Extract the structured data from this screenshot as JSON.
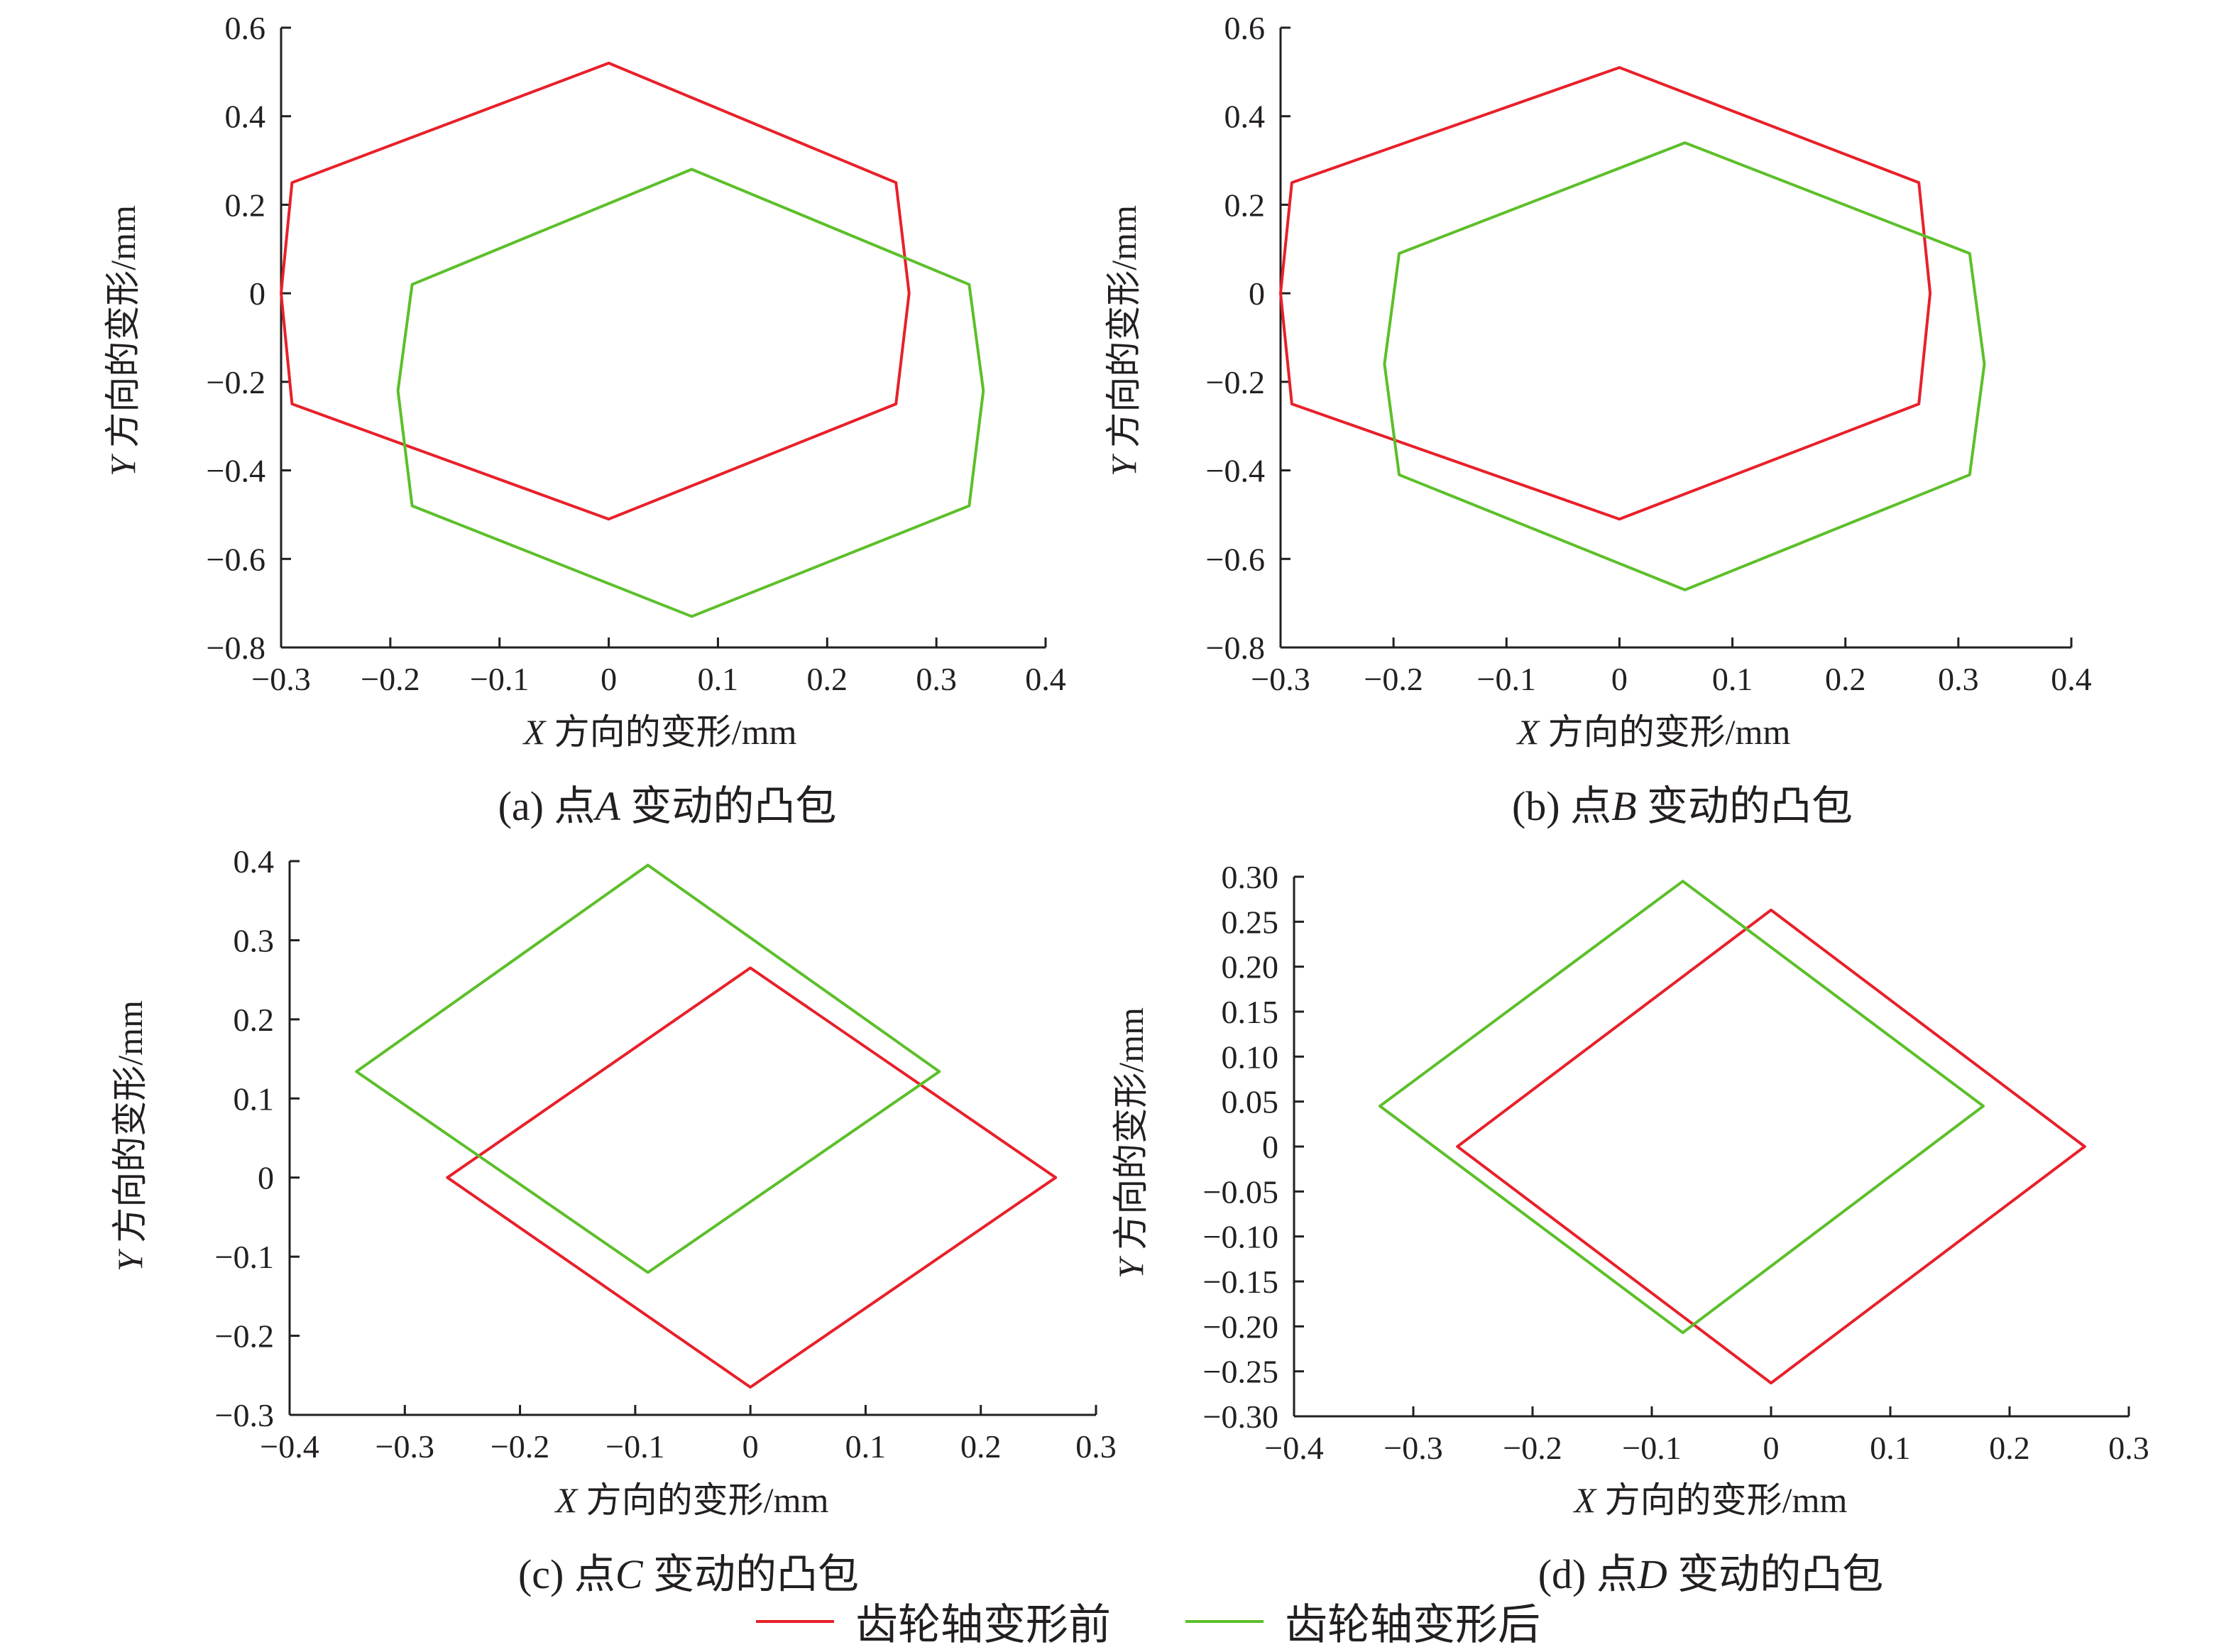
{
  "legend": [
    {
      "label": "齿轮轴变形前",
      "color": "#e8202a"
    },
    {
      "label": "齿轮轴变形后",
      "color": "#5cbf2a"
    }
  ],
  "chart_data": [
    {
      "type": "line",
      "caption": {
        "prefix": "(a) 点",
        "point": "A",
        "suffix": " 变动的凸包"
      },
      "xlabel": {
        "var": "X",
        "text": " 方向的变形/mm"
      },
      "ylabel": {
        "var": "Y",
        "text": " 方向的变形/mm"
      },
      "xlim": [
        -0.3,
        0.4
      ],
      "ylim": [
        -0.8,
        0.6
      ],
      "xticks": [
        "−0.3",
        "−0.2",
        "−0.1",
        "0",
        "0.1",
        "0.2",
        "0.3",
        "0.4"
      ],
      "yticks": [
        "−0.8",
        "−0.6",
        "−0.4",
        "−0.2",
        "0",
        "0.2",
        "0.4",
        "0.6"
      ],
      "xtickvals": [
        -0.3,
        -0.2,
        -0.1,
        0,
        0.1,
        0.2,
        0.3,
        0.4
      ],
      "ytickvals": [
        -0.8,
        -0.6,
        -0.4,
        -0.2,
        0,
        0.2,
        0.4,
        0.6
      ],
      "series": [
        {
          "name": "齿轮轴变形前",
          "points": [
            [
              0,
              0.52
            ],
            [
              0.263,
              0.25
            ],
            [
              0.275,
              0
            ],
            [
              0.263,
              -0.25
            ],
            [
              0,
              -0.51
            ],
            [
              -0.29,
              -0.25
            ],
            [
              -0.3,
              0
            ],
            [
              -0.29,
              0.25
            ]
          ]
        },
        {
          "name": "齿轮轴变形后",
          "points": [
            [
              0.076,
              0.28
            ],
            [
              0.33,
              0.02
            ],
            [
              0.343,
              -0.22
            ],
            [
              0.33,
              -0.48
            ],
            [
              0.076,
              -0.73
            ],
            [
              -0.18,
              -0.48
            ],
            [
              -0.193,
              -0.22
            ],
            [
              -0.18,
              0.02
            ]
          ]
        }
      ]
    },
    {
      "type": "line",
      "caption": {
        "prefix": "(b) 点",
        "point": "B",
        "suffix": " 变动的凸包"
      },
      "xlabel": {
        "var": "X",
        "text": " 方向的变形/mm"
      },
      "ylabel": {
        "var": "Y",
        "text": " 方向的变形/mm"
      },
      "xlim": [
        -0.3,
        0.4
      ],
      "ylim": [
        -0.8,
        0.6
      ],
      "xticks": [
        "−0.3",
        "−0.2",
        "−0.1",
        "0",
        "0.1",
        "0.2",
        "0.3",
        "0.4"
      ],
      "yticks": [
        "−0.8",
        "−0.6",
        "−0.4",
        "−0.2",
        "0",
        "0.2",
        "0.4",
        "0.6"
      ],
      "xtickvals": [
        -0.3,
        -0.2,
        -0.1,
        0,
        0.1,
        0.2,
        0.3,
        0.4
      ],
      "ytickvals": [
        -0.8,
        -0.6,
        -0.4,
        -0.2,
        0,
        0.2,
        0.4,
        0.6
      ],
      "series": [
        {
          "name": "齿轮轴变形前",
          "points": [
            [
              0,
              0.51
            ],
            [
              0.265,
              0.25
            ],
            [
              0.275,
              0
            ],
            [
              0.265,
              -0.25
            ],
            [
              0,
              -0.51
            ],
            [
              -0.29,
              -0.25
            ],
            [
              -0.3,
              0
            ],
            [
              -0.29,
              0.25
            ]
          ]
        },
        {
          "name": "齿轮轴变形后",
          "points": [
            [
              0.058,
              0.34
            ],
            [
              0.31,
              0.09
            ],
            [
              0.323,
              -0.16
            ],
            [
              0.31,
              -0.41
            ],
            [
              0.058,
              -0.67
            ],
            [
              -0.195,
              -0.41
            ],
            [
              -0.208,
              -0.16
            ],
            [
              -0.195,
              0.09
            ]
          ]
        }
      ]
    },
    {
      "type": "line",
      "caption": {
        "prefix": "(c) 点",
        "point": "C",
        "suffix": " 变动的凸包"
      },
      "xlabel": {
        "var": "X",
        "text": " 方向的变形/mm"
      },
      "ylabel": {
        "var": "Y",
        "text": " 方向的变形/mm"
      },
      "xlim": [
        -0.4,
        0.3
      ],
      "ylim": [
        -0.3,
        0.4
      ],
      "xticks": [
        "−0.4",
        "−0.3",
        "−0.2",
        "−0.1",
        "0",
        "0.1",
        "0.2",
        "0.3"
      ],
      "yticks": [
        "−0.3",
        "−0.2",
        "−0.1",
        "0",
        "0.1",
        "0.2",
        "0.3",
        "0.4"
      ],
      "xtickvals": [
        -0.4,
        -0.3,
        -0.2,
        -0.1,
        0,
        0.1,
        0.2,
        0.3
      ],
      "ytickvals": [
        -0.3,
        -0.2,
        -0.1,
        0,
        0.1,
        0.2,
        0.3,
        0.4
      ],
      "series": [
        {
          "name": "齿轮轴变形前",
          "points": [
            [
              0,
              0.265
            ],
            [
              0.265,
              0
            ],
            [
              0,
              -0.265
            ],
            [
              -0.263,
              0
            ]
          ]
        },
        {
          "name": "齿轮轴变形后",
          "points": [
            [
              -0.089,
              0.395
            ],
            [
              0.164,
              0.134
            ],
            [
              -0.089,
              -0.12
            ],
            [
              -0.342,
              0.134
            ]
          ]
        }
      ]
    },
    {
      "type": "line",
      "caption": {
        "prefix": "(d) 点",
        "point": "D",
        "suffix": " 变动的凸包"
      },
      "xlabel": {
        "var": "X",
        "text": " 方向的变形/mm"
      },
      "ylabel": {
        "var": "Y",
        "text": " 方向的变形/mm"
      },
      "xlim": [
        -0.4,
        0.3
      ],
      "ylim": [
        -0.3,
        0.3
      ],
      "xticks": [
        "−0.4",
        "−0.3",
        "−0.2",
        "−0.1",
        "0",
        "0.1",
        "0.2",
        "0.3"
      ],
      "yticks": [
        "−0.30",
        "−0.25",
        "−0.20",
        "−0.15",
        "−0.10",
        "−0.05",
        "0",
        "0.05",
        "0.10",
        "0.15",
        "0.20",
        "0.25",
        "0.30"
      ],
      "xtickvals": [
        -0.4,
        -0.3,
        -0.2,
        -0.1,
        0,
        0.1,
        0.2,
        0.3
      ],
      "ytickvals": [
        -0.3,
        -0.25,
        -0.2,
        -0.15,
        -0.1,
        -0.05,
        0,
        0.05,
        0.1,
        0.15,
        0.2,
        0.25,
        0.3
      ],
      "series": [
        {
          "name": "齿轮轴变形前",
          "points": [
            [
              0,
              0.263
            ],
            [
              0.263,
              0
            ],
            [
              0,
              -0.263
            ],
            [
              -0.263,
              0
            ]
          ]
        },
        {
          "name": "齿轮轴变形后",
          "points": [
            [
              -0.074,
              0.295
            ],
            [
              0.178,
              0.045
            ],
            [
              -0.074,
              -0.207
            ],
            [
              -0.328,
              0.045
            ]
          ]
        }
      ]
    }
  ]
}
